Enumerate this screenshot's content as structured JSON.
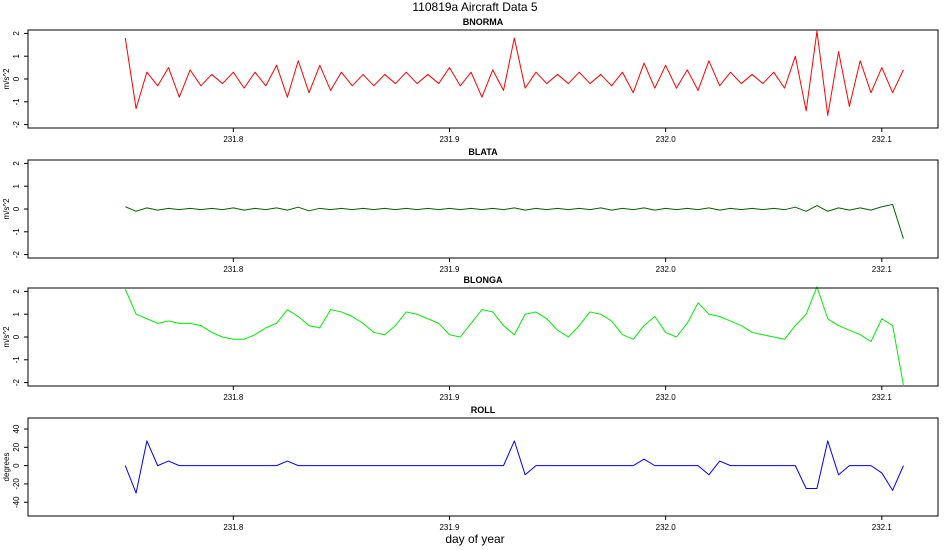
{
  "title": "110819a   Aircraft Data 5",
  "x_label": "day of year",
  "chart_data": [
    {
      "type": "line",
      "title": "BNORMA",
      "y_label": "m/s^2",
      "xlim": [
        231.705,
        232.126
      ],
      "ylim": [
        -2.15,
        2.15
      ],
      "xticks": [
        231.8,
        231.9,
        {
          "value": 232.0,
          "label": "232.0"
        },
        232.1
      ],
      "yticks": [
        -2,
        -1,
        0,
        1,
        2
      ],
      "x": [
        231.75,
        231.755,
        231.76,
        231.765,
        231.77,
        231.775,
        231.78,
        231.785,
        231.79,
        231.795,
        231.8,
        231.805,
        231.81,
        231.815,
        231.82,
        231.825,
        231.83,
        231.835,
        231.84,
        231.845,
        231.85,
        231.855,
        231.86,
        231.865,
        231.87,
        231.875,
        231.88,
        231.885,
        231.89,
        231.895,
        231.9,
        231.905,
        231.91,
        231.915,
        231.92,
        231.925,
        231.93,
        231.935,
        231.94,
        231.945,
        231.95,
        231.955,
        231.96,
        231.965,
        231.97,
        231.975,
        231.98,
        231.985,
        231.99,
        231.995,
        232.0,
        232.005,
        232.01,
        232.015,
        232.02,
        232.025,
        232.03,
        232.035,
        232.04,
        232.045,
        232.05,
        232.055,
        232.06,
        232.065,
        232.07,
        232.075,
        232.08,
        232.085,
        232.09,
        232.095,
        232.1,
        232.105,
        232.11
      ],
      "series": [
        {
          "color": "#ff0000",
          "values": [
            1.8,
            -1.3,
            0.3,
            -0.3,
            0.5,
            -0.8,
            0.4,
            -0.3,
            0.2,
            -0.2,
            0.3,
            -0.4,
            0.3,
            -0.3,
            0.6,
            -0.8,
            0.8,
            -0.6,
            0.6,
            -0.5,
            0.3,
            -0.3,
            0.2,
            -0.3,
            0.2,
            -0.2,
            0.3,
            -0.2,
            0.2,
            -0.2,
            0.5,
            -0.3,
            0.3,
            -0.8,
            0.4,
            -0.5,
            1.8,
            -0.4,
            0.3,
            -0.2,
            0.2,
            -0.2,
            0.3,
            -0.2,
            0.2,
            -0.3,
            0.3,
            -0.6,
            0.7,
            -0.4,
            0.6,
            -0.4,
            0.4,
            -0.5,
            0.8,
            -0.3,
            0.3,
            -0.2,
            0.2,
            -0.2,
            0.3,
            -0.4,
            1.0,
            -1.4,
            2.1,
            -1.6,
            1.2,
            -1.2,
            0.8,
            -0.6,
            0.5,
            -0.6,
            0.4
          ]
        }
      ]
    },
    {
      "type": "line",
      "title": "BLATA",
      "y_label": "m/s^2",
      "xlim": [
        231.705,
        232.126
      ],
      "ylim": [
        -2.15,
        2.15
      ],
      "xticks": [
        231.8,
        231.9,
        {
          "value": 232.0,
          "label": "232.0"
        },
        232.1
      ],
      "yticks": [
        -2,
        -1,
        0,
        1,
        2
      ],
      "x": [
        231.75,
        231.755,
        231.76,
        231.765,
        231.77,
        231.775,
        231.78,
        231.785,
        231.79,
        231.795,
        231.8,
        231.805,
        231.81,
        231.815,
        231.82,
        231.825,
        231.83,
        231.835,
        231.84,
        231.845,
        231.85,
        231.855,
        231.86,
        231.865,
        231.87,
        231.875,
        231.88,
        231.885,
        231.89,
        231.895,
        231.9,
        231.905,
        231.91,
        231.915,
        231.92,
        231.925,
        231.93,
        231.935,
        231.94,
        231.945,
        231.95,
        231.955,
        231.96,
        231.965,
        231.97,
        231.975,
        231.98,
        231.985,
        231.99,
        231.995,
        232.0,
        232.005,
        232.01,
        232.015,
        232.02,
        232.025,
        232.03,
        232.035,
        232.04,
        232.045,
        232.05,
        232.055,
        232.06,
        232.065,
        232.07,
        232.075,
        232.08,
        232.085,
        232.09,
        232.095,
        232.1,
        232.105,
        232.11
      ],
      "series": [
        {
          "color": "#006400",
          "values": [
            0.1,
            -0.1,
            0.05,
            -0.05,
            0.03,
            -0.03,
            0.03,
            -0.03,
            0.03,
            -0.03,
            0.05,
            -0.05,
            0.03,
            -0.03,
            0.05,
            -0.05,
            0.08,
            -0.08,
            0.03,
            -0.03,
            0.03,
            -0.03,
            0.03,
            -0.03,
            0.03,
            -0.03,
            0.03,
            -0.03,
            0.03,
            -0.03,
            0.03,
            -0.03,
            0.03,
            -0.03,
            0.03,
            -0.03,
            0.05,
            -0.05,
            0.03,
            -0.03,
            0.03,
            -0.03,
            0.03,
            -0.03,
            0.05,
            -0.05,
            0.03,
            -0.03,
            0.05,
            -0.05,
            0.03,
            -0.03,
            0.03,
            -0.03,
            0.05,
            -0.05,
            0.03,
            -0.03,
            0.03,
            -0.03,
            0.03,
            -0.03,
            0.08,
            -0.1,
            0.15,
            -0.1,
            0.05,
            -0.05,
            0.05,
            -0.05,
            0.1,
            0.2,
            -1.3
          ]
        }
      ]
    },
    {
      "type": "line",
      "title": "BLONGA",
      "y_label": "m/s^2",
      "xlim": [
        231.705,
        232.126
      ],
      "ylim": [
        -2.15,
        2.15
      ],
      "xticks": [
        231.8,
        231.9,
        {
          "value": 232.0,
          "label": "232.0"
        },
        232.1
      ],
      "yticks": [
        -2,
        -1,
        0,
        1,
        2
      ],
      "x": [
        231.75,
        231.755,
        231.76,
        231.765,
        231.77,
        231.775,
        231.78,
        231.785,
        231.79,
        231.795,
        231.8,
        231.805,
        231.81,
        231.815,
        231.82,
        231.825,
        231.83,
        231.835,
        231.84,
        231.845,
        231.85,
        231.855,
        231.86,
        231.865,
        231.87,
        231.875,
        231.88,
        231.885,
        231.89,
        231.895,
        231.9,
        231.905,
        231.91,
        231.915,
        231.92,
        231.925,
        231.93,
        231.935,
        231.94,
        231.945,
        231.95,
        231.955,
        231.96,
        231.965,
        231.97,
        231.975,
        231.98,
        231.985,
        231.99,
        231.995,
        232.0,
        232.005,
        232.01,
        232.015,
        232.02,
        232.025,
        232.03,
        232.035,
        232.04,
        232.045,
        232.05,
        232.055,
        232.06,
        232.065,
        232.07,
        232.075,
        232.08,
        232.085,
        232.09,
        232.095,
        232.1,
        232.105,
        232.11
      ],
      "series": [
        {
          "color": "#00ee00",
          "values": [
            2.1,
            1.0,
            0.8,
            0.6,
            0.7,
            0.6,
            0.6,
            0.5,
            0.2,
            0.0,
            -0.1,
            -0.1,
            0.1,
            0.4,
            0.6,
            1.2,
            0.9,
            0.5,
            0.4,
            1.2,
            1.1,
            0.9,
            0.6,
            0.2,
            0.1,
            0.5,
            1.1,
            1.0,
            0.8,
            0.6,
            0.1,
            0.0,
            0.6,
            1.2,
            1.1,
            0.5,
            0.1,
            1.0,
            1.1,
            0.8,
            0.3,
            0.0,
            0.5,
            1.1,
            1.0,
            0.7,
            0.1,
            -0.1,
            0.5,
            0.9,
            0.2,
            0.0,
            0.6,
            1.5,
            1.0,
            0.9,
            0.7,
            0.5,
            0.2,
            0.1,
            0.0,
            -0.1,
            0.5,
            1.0,
            2.2,
            0.8,
            0.5,
            0.3,
            0.1,
            -0.2,
            0.8,
            0.5,
            -2.1
          ]
        }
      ]
    },
    {
      "type": "line",
      "title": "ROLL",
      "y_label": "degrees",
      "xlim": [
        231.705,
        232.126
      ],
      "ylim": [
        -55,
        52
      ],
      "xticks": [
        231.8,
        231.9,
        {
          "value": 232.0,
          "label": "232.0"
        },
        232.1
      ],
      "yticks": [
        -40,
        -20,
        0,
        20,
        40
      ],
      "x": [
        231.75,
        231.755,
        231.76,
        231.765,
        231.77,
        231.775,
        231.78,
        231.785,
        231.79,
        231.795,
        231.8,
        231.805,
        231.81,
        231.815,
        231.82,
        231.825,
        231.83,
        231.835,
        231.84,
        231.845,
        231.85,
        231.855,
        231.86,
        231.865,
        231.87,
        231.875,
        231.88,
        231.885,
        231.89,
        231.895,
        231.9,
        231.905,
        231.91,
        231.915,
        231.92,
        231.925,
        231.93,
        231.935,
        231.94,
        231.945,
        231.95,
        231.955,
        231.96,
        231.965,
        231.97,
        231.975,
        231.98,
        231.985,
        231.99,
        231.995,
        232.0,
        232.005,
        232.01,
        232.015,
        232.02,
        232.025,
        232.03,
        232.035,
        232.04,
        232.045,
        232.05,
        232.055,
        232.06,
        232.065,
        232.07,
        232.075,
        232.08,
        232.085,
        232.09,
        232.095,
        232.1,
        232.105,
        232.11
      ],
      "series": [
        {
          "color": "#0000ff",
          "values": [
            0,
            -30,
            27,
            0,
            5,
            0,
            0,
            0,
            0,
            0,
            0,
            0,
            0,
            0,
            0,
            5,
            0,
            0,
            0,
            0,
            0,
            0,
            0,
            0,
            0,
            0,
            0,
            0,
            0,
            0,
            0,
            0,
            0,
            0,
            0,
            0,
            27,
            -10,
            0,
            0,
            0,
            0,
            0,
            0,
            0,
            0,
            0,
            0,
            7,
            0,
            0,
            0,
            0,
            0,
            -10,
            5,
            0,
            0,
            0,
            0,
            0,
            0,
            0,
            -25,
            -25,
            27,
            -10,
            0,
            0,
            0,
            -8,
            -27,
            0
          ]
        }
      ]
    }
  ]
}
